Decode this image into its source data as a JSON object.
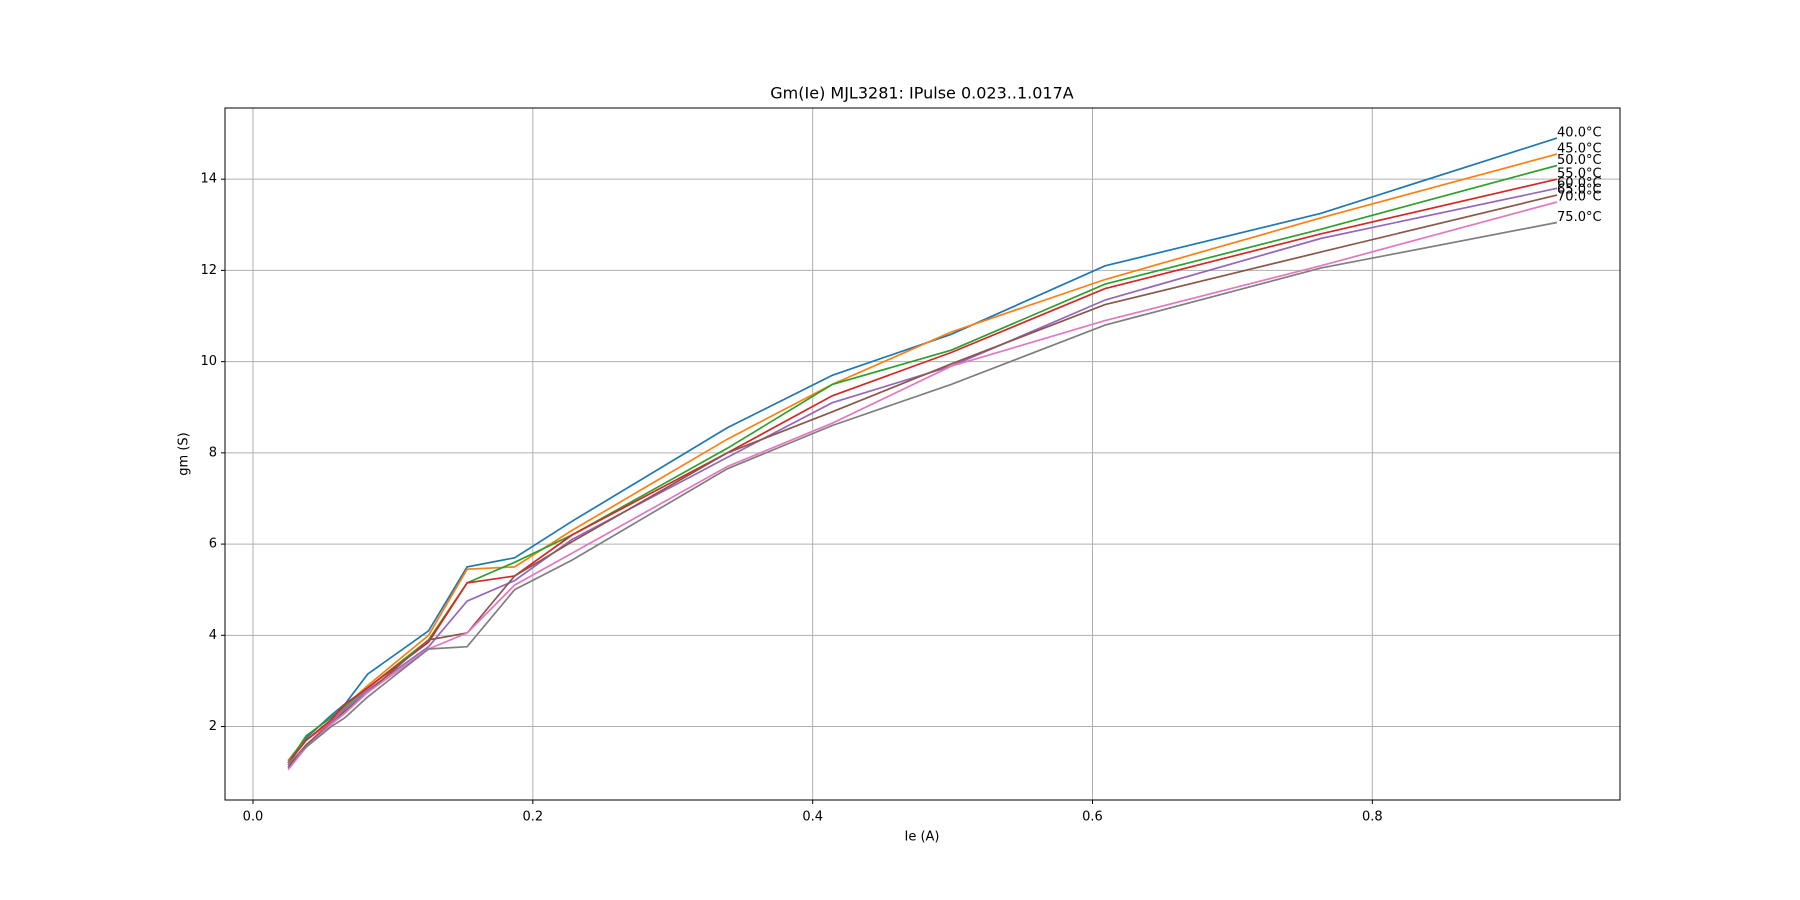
{
  "chart_data": {
    "type": "line",
    "title": "Gm(Ie) MJL3281: IPulse 0.023..1.017A",
    "xlabel": "Ie (A)",
    "ylabel": "gm (S)",
    "x": [
      0.025,
      0.038,
      0.056,
      0.066,
      0.082,
      0.1255,
      0.153,
      0.187,
      0.228,
      0.339,
      0.414,
      0.499,
      0.609,
      0.763,
      0.932
    ],
    "series": [
      {
        "name": "40.0°C",
        "color": "#1f77b4",
        "values": [
          1.25,
          1.75,
          2.25,
          2.5,
          3.15,
          4.1,
          5.5,
          5.7,
          6.5,
          8.55,
          9.7,
          10.6,
          12.1,
          13.25,
          14.9
        ]
      },
      {
        "name": "45.0°C",
        "color": "#ff7f0e",
        "values": [
          1.25,
          1.7,
          2.1,
          2.45,
          2.9,
          4.0,
          5.45,
          5.5,
          6.3,
          8.3,
          9.5,
          10.65,
          11.8,
          13.15,
          14.55
        ]
      },
      {
        "name": "50.0°C",
        "color": "#2ca02c",
        "values": [
          1.2,
          1.8,
          2.2,
          2.45,
          2.85,
          3.9,
          5.15,
          5.6,
          6.2,
          8.1,
          9.5,
          10.25,
          11.7,
          12.9,
          14.3
        ]
      },
      {
        "name": "55.0°C",
        "color": "#d62728",
        "values": [
          1.2,
          1.7,
          2.15,
          2.5,
          2.85,
          3.85,
          5.15,
          5.3,
          6.2,
          8.0,
          9.25,
          10.2,
          11.6,
          12.8,
          14.0
        ]
      },
      {
        "name": "60.0°C",
        "color": "#9467bd",
        "values": [
          1.15,
          1.6,
          2.1,
          2.4,
          2.8,
          3.75,
          4.75,
          5.2,
          6.1,
          7.9,
          9.1,
          9.9,
          11.35,
          12.7,
          13.8
        ]
      },
      {
        "name": "65.0°C",
        "color": "#8c564b",
        "values": [
          1.1,
          1.6,
          2.05,
          2.35,
          2.75,
          3.9,
          4.05,
          5.3,
          6.05,
          8.0,
          8.9,
          9.95,
          11.25,
          12.4,
          13.65
        ]
      },
      {
        "name": "70.0°C",
        "color": "#e377c2",
        "values": [
          1.05,
          1.55,
          2.05,
          2.3,
          2.75,
          3.7,
          4.05,
          5.1,
          5.8,
          7.7,
          8.65,
          9.9,
          10.9,
          12.1,
          13.5
        ]
      },
      {
        "name": "75.0°C",
        "color": "#7f7f7f",
        "values": [
          1.2,
          1.55,
          2.0,
          2.2,
          2.65,
          3.7,
          3.75,
          5.0,
          5.65,
          7.65,
          8.6,
          9.5,
          10.8,
          12.05,
          13.05
        ]
      }
    ],
    "xlim": [
      -0.02,
      0.977
    ],
    "ylim": [
      0.39,
      15.56
    ],
    "xticks": [
      {
        "value": 0,
        "label": "0.0"
      },
      0.2,
      0.4,
      0.6,
      0.8
    ],
    "yticks": [
      2,
      4,
      6,
      8,
      10,
      12,
      14
    ],
    "grid": true
  }
}
